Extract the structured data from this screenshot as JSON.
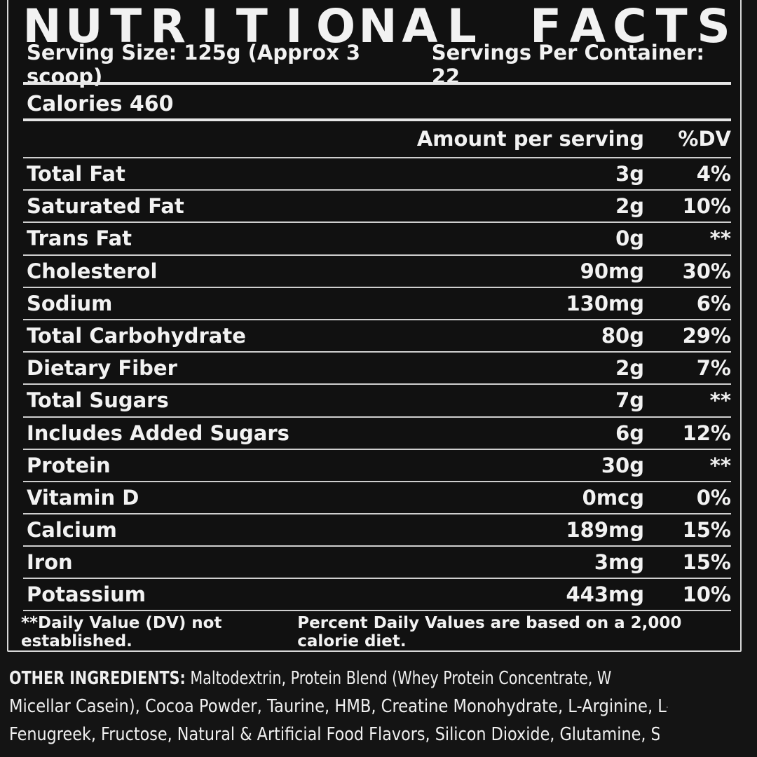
{
  "panel": {
    "title_words": [
      "NUTRITIONAL",
      "FACTS"
    ],
    "serving_size": "Serving Size: 125g (Approx 3 scoop)",
    "servings_per_container": "Servings Per Container: 22",
    "calories": "Calories 460",
    "header": {
      "amount_label": "Amount per serving",
      "dv_label": "%DV"
    },
    "nutrients": [
      {
        "name": "Total Fat",
        "amount": "3g",
        "dv": "4%"
      },
      {
        "name": "Saturated Fat",
        "amount": "2g",
        "dv": "10%"
      },
      {
        "name": "Trans Fat",
        "amount": "0g",
        "dv": "**"
      },
      {
        "name": "Cholesterol",
        "amount": "90mg",
        "dv": "30%"
      },
      {
        "name": "Sodium",
        "amount": "130mg",
        "dv": "6%"
      },
      {
        "name": "Total Carbohydrate",
        "amount": "80g",
        "dv": "29%"
      },
      {
        "name": "Dietary Fiber",
        "amount": "2g",
        "dv": "7%"
      },
      {
        "name": "Total Sugars",
        "amount": "7g",
        "dv": "**"
      },
      {
        "name": "Includes Added Sugars",
        "amount": "6g",
        "dv": "12%"
      },
      {
        "name": "Protein",
        "amount": "30g",
        "dv": "**"
      },
      {
        "name": "Vitamin D",
        "amount": "0mcg",
        "dv": "0%"
      },
      {
        "name": "Calcium",
        "amount": "189mg",
        "dv": "15%"
      },
      {
        "name": "Iron",
        "amount": "3mg",
        "dv": "15%"
      },
      {
        "name": "Potassium",
        "amount": "443mg",
        "dv": "10%"
      }
    ],
    "footnote_left": "**Daily Value (DV) not established.",
    "footnote_right": "Percent Daily Values are based on a 2,000 calorie diet."
  },
  "ingredients": {
    "label": "OTHER INGREDIENTS:",
    "line1": " Maltodextrin, Protein Blend (Whey Protein Concentrate, Whey Protein Isolate,",
    "line2": "Micellar Casein), Cocoa Powder, Taurine, HMB, Creatine Monohydrate, L-Arginine, L-Ornithine,",
    "line3": "Fenugreek, Fructose, Natural & Artificial Food Flavors, Silicon Dioxide, Glutamine, Soy Lecithin,"
  },
  "colors": {
    "background": "#141414",
    "text": "#f2f2f2",
    "rule": "#e6e6e6"
  }
}
